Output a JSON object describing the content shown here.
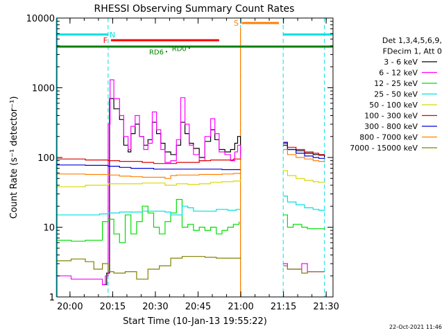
{
  "chart_data": {
    "type": "line",
    "title": "RHESSI Observing Summary Count Rates",
    "xlabel": "Start Time (10-Jan-13 19:55:22)",
    "ylabel": "Count Rate (s⁻¹ detector⁻¹)",
    "yscale": "log",
    "ylim": [
      1,
      10000
    ],
    "x_unit": "minutes since 19:55:22",
    "xlim": [
      0,
      97
    ],
    "x_ticks": [
      {
        "label": "20:00",
        "value": 4.6
      },
      {
        "label": "20:15",
        "value": 19.6
      },
      {
        "label": "20:30",
        "value": 34.6
      },
      {
        "label": "20:45",
        "value": 49.6
      },
      {
        "label": "21:00",
        "value": 64.6
      },
      {
        "label": "21:15",
        "value": 79.6
      },
      {
        "label": "21:30",
        "value": 94.6
      }
    ],
    "y_ticks": [
      {
        "label": "1",
        "value": 1
      },
      {
        "label": "10",
        "value": 10
      },
      {
        "label": "100",
        "value": 100
      },
      {
        "label": "1000",
        "value": 1000
      },
      {
        "label": "10000",
        "value": 10000
      }
    ],
    "legend_title_lines": [
      "Det 1,3,4,5,6,9,",
      "FDecim 1, Att 0"
    ],
    "legend_placement": "right",
    "series": [
      {
        "name": "3 - 6 keV",
        "color": "#000000",
        "gap": [
          65,
          79.5
        ],
        "points": [
          [
            16,
            1.5
          ],
          [
            17.5,
            2.2
          ],
          [
            18.5,
            700
          ],
          [
            20,
            500
          ],
          [
            22,
            350
          ],
          [
            23.5,
            150
          ],
          [
            25,
            120
          ],
          [
            26,
            220
          ],
          [
            27.5,
            300
          ],
          [
            29,
            200
          ],
          [
            30.5,
            150
          ],
          [
            32,
            180
          ],
          [
            33.5,
            320
          ],
          [
            35,
            220
          ],
          [
            36.5,
            160
          ],
          [
            38,
            120
          ],
          [
            40,
            110
          ],
          [
            42,
            150
          ],
          [
            43.5,
            320
          ],
          [
            45,
            220
          ],
          [
            46.5,
            160
          ],
          [
            48,
            135
          ],
          [
            50,
            100
          ],
          [
            52,
            170
          ],
          [
            54,
            250
          ],
          [
            55.5,
            180
          ],
          [
            57,
            130
          ],
          [
            59,
            120
          ],
          [
            61,
            130
          ],
          [
            62.5,
            160
          ],
          [
            63.5,
            200
          ],
          [
            64.5,
            110
          ],
          [
            79.5,
            150
          ],
          [
            81,
            130
          ],
          [
            84,
            125
          ],
          [
            87,
            115
          ],
          [
            90,
            110
          ],
          [
            92,
            108
          ],
          [
            94,
            100
          ]
        ]
      },
      {
        "name": "6 - 12 keV",
        "color": "#ff00ff",
        "gap": [
          65,
          79.5
        ],
        "points": [
          [
            0,
            2
          ],
          [
            5,
            1.8
          ],
          [
            10,
            1.8
          ],
          [
            15,
            1.8
          ],
          [
            16,
            1.5
          ],
          [
            17,
            2
          ],
          [
            18,
            300
          ],
          [
            18.7,
            1300
          ],
          [
            20,
            700
          ],
          [
            22,
            400
          ],
          [
            23.5,
            200
          ],
          [
            25,
            130
          ],
          [
            26,
            280
          ],
          [
            27.5,
            400
          ],
          [
            29,
            200
          ],
          [
            30.5,
            130
          ],
          [
            32,
            160
          ],
          [
            33.5,
            450
          ],
          [
            35,
            250
          ],
          [
            36.5,
            130
          ],
          [
            38,
            85
          ],
          [
            40,
            90
          ],
          [
            42,
            180
          ],
          [
            43.5,
            720
          ],
          [
            45,
            300
          ],
          [
            46.5,
            150
          ],
          [
            48,
            110
          ],
          [
            50,
            90
          ],
          [
            52,
            200
          ],
          [
            54,
            360
          ],
          [
            55.5,
            220
          ],
          [
            57,
            120
          ],
          [
            59,
            110
          ],
          [
            61,
            90
          ],
          [
            62.5,
            120
          ],
          [
            63.5,
            150
          ],
          [
            64.5,
            100
          ],
          [
            79.5,
            3
          ],
          [
            81,
            2.5
          ],
          [
            84,
            2.5
          ],
          [
            86,
            3
          ],
          [
            88,
            2.3
          ],
          [
            90,
            2.3
          ],
          [
            92,
            2.3
          ],
          [
            94,
            2.3
          ]
        ]
      },
      {
        "name": "12 - 25 keV",
        "color": "#00dd00",
        "gap": [
          65,
          79.5
        ],
        "points": [
          [
            0,
            6.5
          ],
          [
            5,
            6.3
          ],
          [
            10,
            6.5
          ],
          [
            13,
            6.5
          ],
          [
            16,
            12
          ],
          [
            18,
            13
          ],
          [
            20,
            8
          ],
          [
            22,
            6
          ],
          [
            24,
            15
          ],
          [
            26,
            8
          ],
          [
            28,
            12
          ],
          [
            30,
            20
          ],
          [
            32,
            16
          ],
          [
            34,
            10
          ],
          [
            36,
            8
          ],
          [
            38,
            12
          ],
          [
            40,
            16
          ],
          [
            42,
            25
          ],
          [
            44,
            10
          ],
          [
            46,
            11
          ],
          [
            48,
            9
          ],
          [
            50,
            10
          ],
          [
            52,
            9
          ],
          [
            54,
            10
          ],
          [
            56,
            8
          ],
          [
            58,
            9
          ],
          [
            60,
            10
          ],
          [
            62,
            11
          ],
          [
            64,
            12
          ],
          [
            79.5,
            15
          ],
          [
            81,
            10
          ],
          [
            83,
            11
          ],
          [
            86,
            10
          ],
          [
            88,
            9.5
          ],
          [
            90,
            9.5
          ],
          [
            92,
            9.5
          ],
          [
            94,
            9.2
          ]
        ]
      },
      {
        "name": "25 - 50 keV",
        "color": "#00e0e0",
        "gap": [
          65,
          79.5
        ],
        "points": [
          [
            0,
            15
          ],
          [
            5,
            15
          ],
          [
            10,
            15
          ],
          [
            15,
            15.5
          ],
          [
            18,
            16
          ],
          [
            22,
            16.5
          ],
          [
            26,
            16.5
          ],
          [
            30,
            17
          ],
          [
            34,
            17
          ],
          [
            38,
            16.5
          ],
          [
            40,
            15
          ],
          [
            44,
            20
          ],
          [
            46,
            19
          ],
          [
            48,
            17
          ],
          [
            52,
            17
          ],
          [
            56,
            18
          ],
          [
            60,
            17.5
          ],
          [
            63,
            18
          ],
          [
            64.5,
            18
          ],
          [
            79.5,
            28
          ],
          [
            81,
            23
          ],
          [
            84,
            21
          ],
          [
            87,
            19
          ],
          [
            90,
            18
          ],
          [
            92,
            17.5
          ],
          [
            94,
            17
          ]
        ]
      },
      {
        "name": "50 - 100 keV",
        "color": "#d8d800",
        "gap": [
          65,
          79.5
        ],
        "points": [
          [
            0,
            38
          ],
          [
            5,
            38
          ],
          [
            10,
            40
          ],
          [
            15,
            40
          ],
          [
            18,
            42
          ],
          [
            22,
            42
          ],
          [
            26,
            42
          ],
          [
            30,
            43
          ],
          [
            34,
            43
          ],
          [
            38,
            40
          ],
          [
            42,
            42
          ],
          [
            46,
            41
          ],
          [
            50,
            42
          ],
          [
            54,
            44
          ],
          [
            58,
            45
          ],
          [
            62,
            46
          ],
          [
            64.5,
            48
          ],
          [
            79.5,
            65
          ],
          [
            81,
            55
          ],
          [
            84,
            50
          ],
          [
            87,
            47
          ],
          [
            90,
            45
          ],
          [
            92,
            44
          ],
          [
            94,
            43
          ]
        ]
      },
      {
        "name": "100 - 300 keV",
        "color": "#dd0000",
        "gap": [
          65,
          79.5
        ],
        "points": [
          [
            0,
            95
          ],
          [
            5,
            95
          ],
          [
            10,
            92
          ],
          [
            15,
            92
          ],
          [
            18,
            90
          ],
          [
            22,
            88
          ],
          [
            26,
            88
          ],
          [
            30,
            85
          ],
          [
            34,
            82
          ],
          [
            38,
            82
          ],
          [
            42,
            85
          ],
          [
            46,
            85
          ],
          [
            50,
            90
          ],
          [
            54,
            92
          ],
          [
            58,
            92
          ],
          [
            62,
            95
          ],
          [
            64.5,
            98
          ],
          [
            79.5,
            160
          ],
          [
            81,
            140
          ],
          [
            84,
            130
          ],
          [
            87,
            120
          ],
          [
            90,
            115
          ],
          [
            92,
            110
          ],
          [
            94,
            108
          ]
        ]
      },
      {
        "name": "300 - 800 keV",
        "color": "#0000dd",
        "gap": [
          65,
          79.5
        ],
        "points": [
          [
            0,
            78
          ],
          [
            5,
            78
          ],
          [
            10,
            77
          ],
          [
            15,
            77
          ],
          [
            18,
            75
          ],
          [
            22,
            72
          ],
          [
            26,
            70
          ],
          [
            30,
            70
          ],
          [
            34,
            68
          ],
          [
            38,
            68
          ],
          [
            42,
            68
          ],
          [
            46,
            68
          ],
          [
            50,
            68
          ],
          [
            54,
            68
          ],
          [
            58,
            67
          ],
          [
            62,
            67
          ],
          [
            64.5,
            67
          ],
          [
            79.5,
            165
          ],
          [
            81,
            130
          ],
          [
            84,
            115
          ],
          [
            87,
            105
          ],
          [
            90,
            100
          ],
          [
            92,
            97
          ],
          [
            94,
            95
          ]
        ]
      },
      {
        "name": "800 - 7000 keV",
        "color": "#ff8000",
        "gap": [
          65,
          79.5
        ],
        "points": [
          [
            0,
            58
          ],
          [
            5,
            58
          ],
          [
            10,
            57
          ],
          [
            15,
            57
          ],
          [
            18,
            56
          ],
          [
            22,
            54
          ],
          [
            26,
            53
          ],
          [
            30,
            52
          ],
          [
            34,
            52
          ],
          [
            38,
            50
          ],
          [
            40,
            55
          ],
          [
            42,
            56
          ],
          [
            46,
            56
          ],
          [
            50,
            57
          ],
          [
            54,
            57
          ],
          [
            58,
            58
          ],
          [
            62,
            59
          ],
          [
            64.5,
            60
          ],
          [
            79.5,
            130
          ],
          [
            81,
            110
          ],
          [
            84,
            100
          ],
          [
            87,
            95
          ],
          [
            90,
            90
          ],
          [
            92,
            88
          ],
          [
            94,
            85
          ]
        ]
      },
      {
        "name": "7000 - 15000 keV",
        "color": "#808000",
        "gap": [
          65,
          79.5
        ],
        "points": [
          [
            0,
            3.3
          ],
          [
            5,
            3.5
          ],
          [
            10,
            3.2
          ],
          [
            13,
            2.5
          ],
          [
            16,
            3
          ],
          [
            18,
            2.3
          ],
          [
            20,
            2.2
          ],
          [
            24,
            2.3
          ],
          [
            28,
            1.8
          ],
          [
            32,
            2.5
          ],
          [
            36,
            2.8
          ],
          [
            40,
            3.6
          ],
          [
            44,
            3.8
          ],
          [
            48,
            3.8
          ],
          [
            52,
            3.7
          ],
          [
            56,
            3.6
          ],
          [
            60,
            3.6
          ],
          [
            64.5,
            3.5
          ],
          [
            79.5,
            2.8
          ],
          [
            81,
            2.5
          ],
          [
            84,
            2.5
          ],
          [
            86,
            2.2
          ],
          [
            88,
            2.3
          ],
          [
            90,
            2.3
          ],
          [
            92,
            2.3
          ],
          [
            94,
            2.3
          ]
        ]
      }
    ],
    "annotations": {
      "dashed_lines_x": [
        18,
        64.5,
        79.5,
        94
      ],
      "solid_line_x": 64.5,
      "bars": [
        {
          "label": "N",
          "color": "#00e0e0",
          "x1": 0,
          "x2": 18,
          "y": 5800,
          "label_x": 19.5
        },
        {
          "label": "N",
          "color": "#00e0e0",
          "x1": 79.5,
          "x2": 97,
          "y": 5800
        },
        {
          "label": "F",
          "color": "#ff0000",
          "x1": 19,
          "x2": 57,
          "y": 4800,
          "label_x": 17
        },
        {
          "label": "S",
          "color": "#ff8000",
          "x1": 65,
          "x2": 78,
          "y": 8500,
          "label_x": 63
        },
        {
          "label": "",
          "color": "#008000",
          "x1": 0,
          "x2": 97,
          "y": 3900
        }
      ],
      "points": [
        {
          "label": "RD0",
          "color": "#008000",
          "x": 46.5,
          "y": 3700
        },
        {
          "label": "RD6",
          "color": "#008000",
          "x": 38.5,
          "y": 3300
        }
      ]
    },
    "footer_date": "22-Oct-2021 11:46"
  }
}
